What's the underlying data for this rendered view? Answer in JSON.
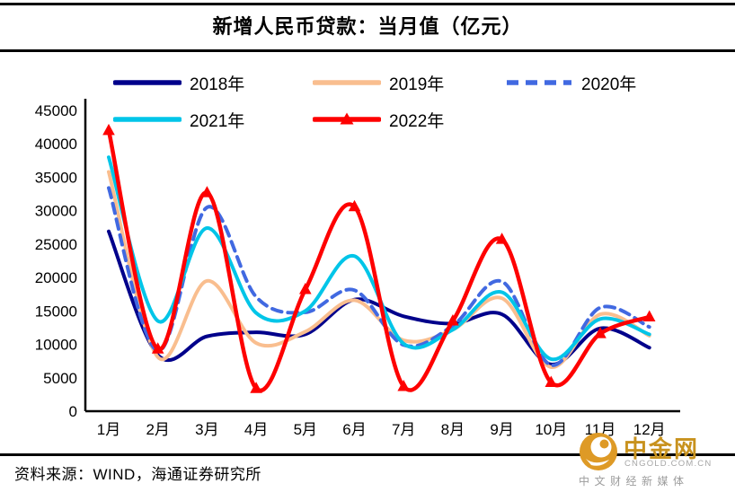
{
  "title": "新增人民币贷款：当月值（亿元）",
  "source": "资料来源：WIND，海通证券研究所",
  "watermark": {
    "brand": "中金网",
    "domain": "CNGOLD.COM.CN",
    "tagline": "中文财经新媒体"
  },
  "chart_data": {
    "type": "line",
    "title": "新增人民币贷款：当月值（亿元）",
    "categories": [
      "1月",
      "2月",
      "3月",
      "4月",
      "5月",
      "6月",
      "7月",
      "8月",
      "9月",
      "10月",
      "11月",
      "12月"
    ],
    "series": [
      {
        "name": "2018年",
        "color": "#00008B",
        "style": "solid",
        "marker": "none",
        "values": [
          26900,
          8400,
          11200,
          11800,
          11500,
          16700,
          14200,
          13100,
          14500,
          7000,
          12400,
          9500
        ]
      },
      {
        "name": "2019年",
        "color": "#F9BE8F",
        "style": "solid",
        "marker": "none",
        "values": [
          35800,
          8100,
          19500,
          10200,
          11900,
          16600,
          10600,
          12200,
          16900,
          6600,
          14500,
          11300
        ]
      },
      {
        "name": "2020年",
        "color": "#4169E1",
        "style": "dashed",
        "marker": "none",
        "values": [
          33400,
          9000,
          30500,
          17100,
          14800,
          18100,
          9900,
          12800,
          19400,
          6900,
          15500,
          12600
        ]
      },
      {
        "name": "2021年",
        "color": "#00C5E8",
        "style": "solid",
        "marker": "none",
        "values": [
          38000,
          13500,
          27400,
          14700,
          15000,
          23200,
          10100,
          12200,
          17800,
          7800,
          13800,
          11500
        ]
      },
      {
        "name": "2022年",
        "color": "#FE0000",
        "style": "solid",
        "marker": "triangle",
        "values": [
          42000,
          9300,
          32700,
          3400,
          18200,
          30600,
          3700,
          13500,
          25700,
          4300,
          11600,
          14100
        ]
      }
    ],
    "xlabel": "",
    "ylabel": "",
    "ylim": [
      0,
      45000
    ],
    "ytick_step": 5000,
    "grid": false,
    "legend_position": "top"
  }
}
